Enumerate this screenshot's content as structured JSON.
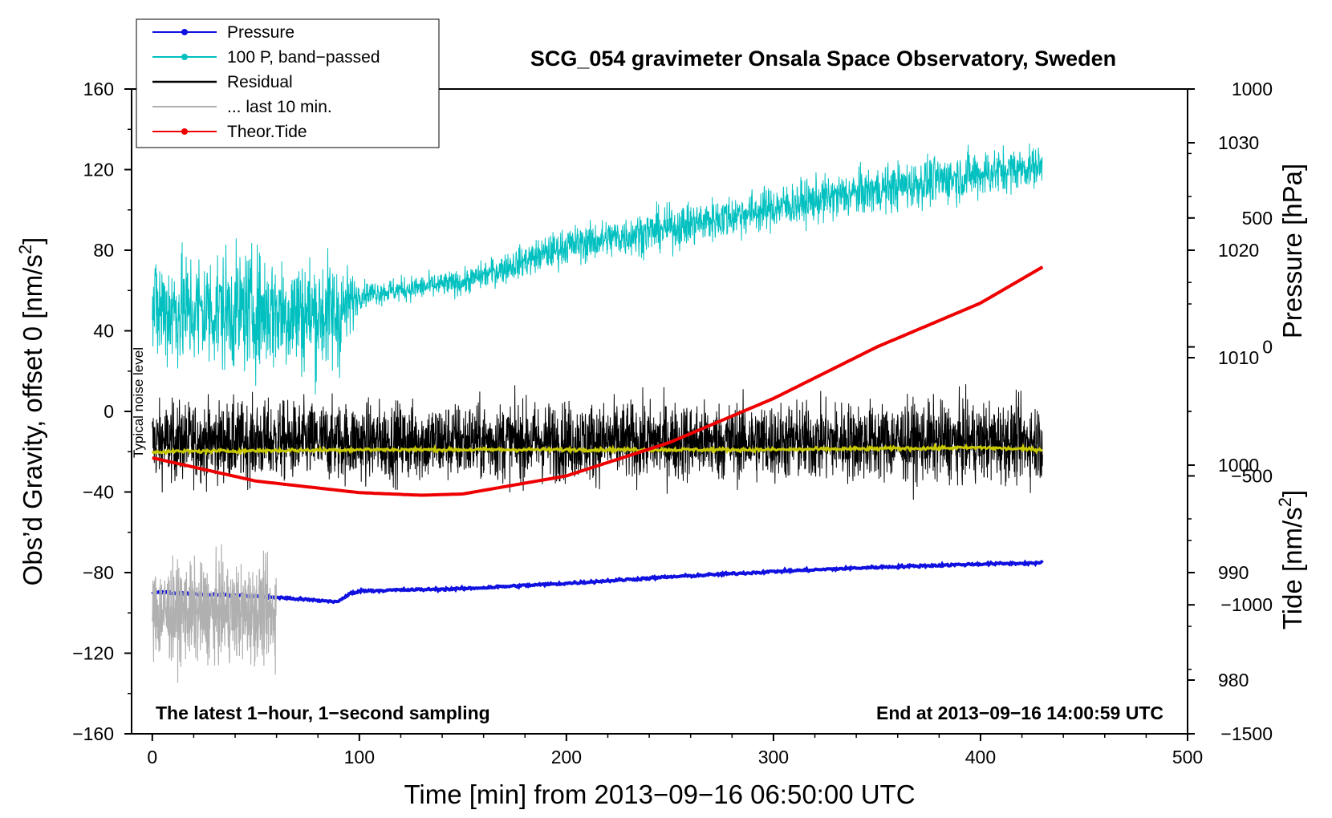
{
  "chart_data": {
    "type": "line",
    "title": "SCG_054 gravimeter Onsala Space Observatory, Sweden",
    "xlabel": "Time [min] from 2013−09−16 06:50:00 UTC",
    "ylabel_left": "Obs’d Gravity, offset 0 [nm/s",
    "ylabel_right_pressure": "Pressure [hPa]",
    "ylabel_right_tide": "Tide [nm/s",
    "superscript": "2",
    "xlim": [
      -10,
      500
    ],
    "ylim_left": [
      -160,
      160
    ],
    "ylim_pressure": [
      975,
      1035
    ],
    "ylim_tide": [
      -1500,
      1000
    ],
    "x_ticks": [
      "0",
      "100",
      "200",
      "300",
      "400",
      "500"
    ],
    "y_ticks_left": [
      "160",
      "120",
      "80",
      "40",
      "0",
      "−40",
      "−80",
      "−120",
      "−160"
    ],
    "y_ticks_pressure": [
      "1030",
      "1020",
      "1010",
      "1000",
      "990",
      "980"
    ],
    "y_ticks_tide": [
      "1000",
      "500",
      "0",
      "−500",
      "−1000",
      "−1500"
    ],
    "legend": {
      "position": "top-left",
      "entries": [
        {
          "label": "Pressure",
          "color": "#1010e0",
          "marker": true
        },
        {
          "label": "100 P, band−passed",
          "color": "#00c0c0",
          "marker": true
        },
        {
          "label": "Residual",
          "color": "#000000",
          "marker": false
        },
        {
          "label": "... last 10 min.",
          "color": "#b0b0b0",
          "marker": false
        },
        {
          "label": "Theor.Tide",
          "color": "#ee0000",
          "marker": true
        }
      ]
    },
    "annotations": {
      "noise": "Typical noise level",
      "left_bottom": "The latest 1−hour, 1−second sampling",
      "right_bottom": "End at 2013−09−16 14:00:59 UTC"
    },
    "series": [
      {
        "name": "Pressure",
        "axis": "pressure",
        "color": "#1010e0",
        "x": [
          0,
          20,
          40,
          60,
          80,
          90,
          95,
          100,
          150,
          200,
          250,
          300,
          350,
          400,
          430
        ],
        "y": [
          988.2,
          988.0,
          987.9,
          987.7,
          987.4,
          987.3,
          988.0,
          988.3,
          988.5,
          989.0,
          989.6,
          990.1,
          990.5,
          990.8,
          990.9
        ]
      },
      {
        "name": "100 P, band−passed",
        "axis": "left",
        "color": "#00c0c0",
        "x": [
          0,
          50,
          90,
          100,
          150,
          200,
          250,
          300,
          350,
          400,
          430
        ],
        "y": [
          50,
          50,
          48,
          58,
          64,
          82,
          91,
          101,
          110,
          118,
          122
        ],
        "noise_amplitude": [
          38,
          38,
          38,
          8,
          8,
          12,
          14,
          14,
          15,
          16,
          12
        ]
      },
      {
        "name": "Residual",
        "axis": "left",
        "color": "#000000",
        "x": [
          0,
          430
        ],
        "y": [
          -15,
          -15
        ],
        "noise_amplitude": 25
      },
      {
        "name": "Residual (smoothed)",
        "axis": "left",
        "color": "#c8c800",
        "x": [
          0,
          100,
          200,
          300,
          400,
          430
        ],
        "y": [
          -20,
          -19,
          -19,
          -19,
          -18,
          -19
        ]
      },
      {
        "name": "... last 10 min.",
        "axis": "left",
        "color": "#b0b0b0",
        "x": [
          0,
          60
        ],
        "y": [
          -100,
          -100
        ],
        "noise_amplitude": 30
      },
      {
        "name": "Theor.Tide",
        "axis": "tide",
        "color": "#ee0000",
        "x": [
          0,
          50,
          100,
          130,
          150,
          200,
          250,
          300,
          350,
          400,
          430
        ],
        "y": [
          -430,
          -520,
          -565,
          -575,
          -570,
          -500,
          -370,
          -200,
          0,
          170,
          310
        ]
      }
    ]
  }
}
